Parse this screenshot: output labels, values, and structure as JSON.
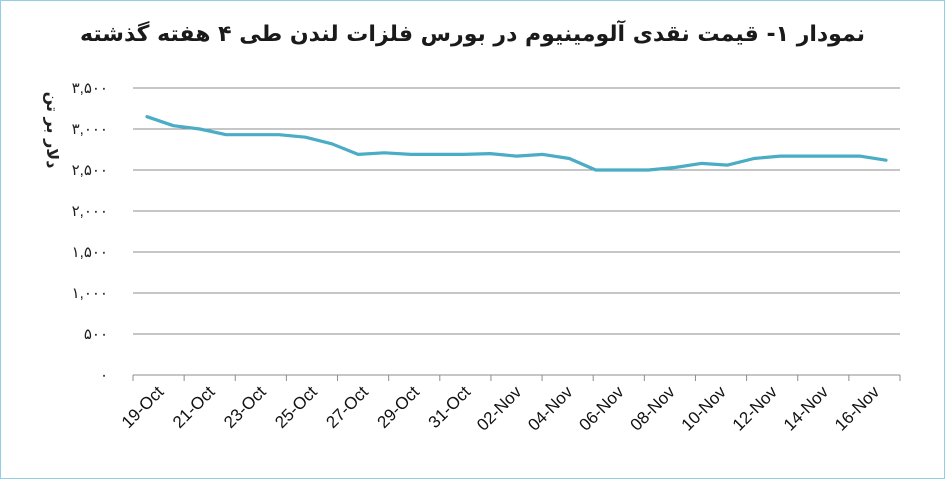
{
  "chart_data": {
    "type": "line",
    "title": "نمودار ۱- قیمت نقدی آلومینیوم در بورس فلزات لندن طی ۴ هفته گذشته",
    "ylabel": "دلار بر تن",
    "xlabel": "",
    "ylim": [
      0,
      3500
    ],
    "yticks": [
      0,
      500,
      1000,
      1500,
      2000,
      2500,
      3000,
      3500
    ],
    "ytick_labels": [
      "۰",
      "۵۰۰",
      "۱,۰۰۰",
      "۱,۵۰۰",
      "۲,۰۰۰",
      "۲,۵۰۰",
      "۳,۰۰۰",
      "۳,۵۰۰"
    ],
    "xtick_labels": [
      "19-Oct",
      "21-Oct",
      "23-Oct",
      "25-Oct",
      "27-Oct",
      "29-Oct",
      "31-Oct",
      "02-Nov",
      "04-Nov",
      "06-Nov",
      "08-Nov",
      "10-Nov",
      "12-Nov",
      "14-Nov",
      "16-Nov"
    ],
    "grid": true,
    "color": "#4aacc5",
    "series": [
      {
        "values": [
          3150,
          3040,
          3000,
          2930,
          2930,
          2930,
          2900,
          2820,
          2690,
          2710,
          2690,
          2690,
          2690,
          2700,
          2670,
          2690,
          2640,
          2500,
          2500,
          2500,
          2530,
          2580,
          2560,
          2640,
          2670,
          2670,
          2670,
          2670,
          2620
        ]
      }
    ]
  }
}
